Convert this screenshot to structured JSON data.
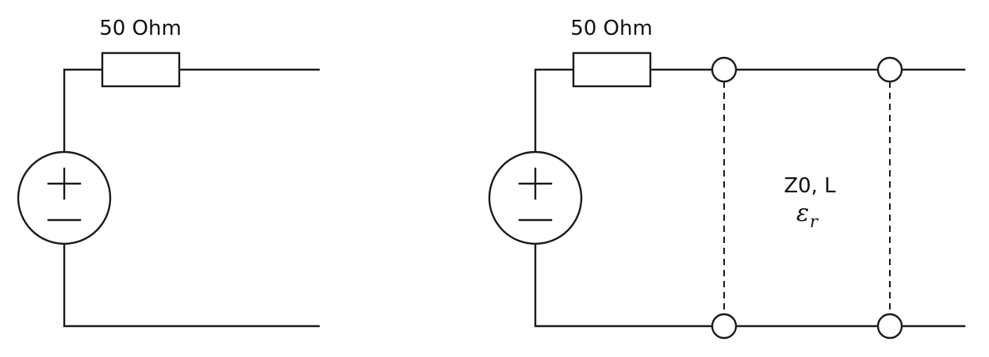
{
  "circuit_left": {
    "resistor_label": "50 Ohm"
  },
  "circuit_right": {
    "resistor_label": "50 Ohm",
    "line_params_label": "Z0, L",
    "permittivity_symbol": "ε",
    "permittivity_subscript": "r"
  }
}
